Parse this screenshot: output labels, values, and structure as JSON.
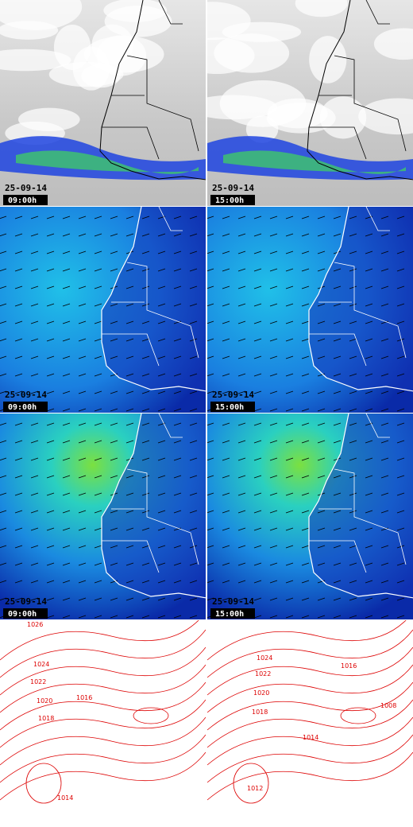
{
  "panels": [
    {
      "date": "25-09-14",
      "time": "09:00h"
    },
    {
      "date": "25-09-14",
      "time": "15:00h"
    },
    {
      "date": "25-09-14",
      "time": "09:00h"
    },
    {
      "date": "25-09-14",
      "time": "15:00h"
    },
    {
      "date": "25-09-14",
      "time": "09:00h"
    },
    {
      "date": "25-09-14",
      "time": "15:00h"
    }
  ],
  "isobars_left": [
    "1026",
    "1024",
    "1022",
    "1020",
    "1018",
    "1016",
    "1014"
  ],
  "isobars_right": [
    "1024",
    "1022",
    "1020",
    "1018",
    "1016",
    "1014",
    "1008",
    "1012"
  ]
}
